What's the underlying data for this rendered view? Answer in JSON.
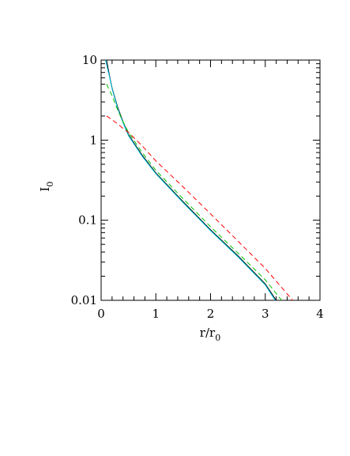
{
  "chart_data": {
    "type": "line",
    "xlabel": "r/r",
    "xlabel_sub": "0",
    "ylabel": "I",
    "ylabel_sub": "0",
    "xlim": [
      0,
      4
    ],
    "xticks": [
      0,
      1,
      2,
      3,
      4
    ],
    "ylim": [
      0.01,
      10
    ],
    "yticks": [
      0.01,
      0.1,
      1,
      10
    ],
    "ylog": true,
    "series": [
      {
        "color": "#000000",
        "dash": false,
        "x": [
          0.1,
          0.15,
          0.2,
          0.3,
          0.4,
          0.5,
          0.75,
          1,
          1.5,
          2,
          2.5,
          3,
          3.2
        ],
        "values": [
          10,
          6.5,
          4.5,
          2.6,
          1.7,
          1.17,
          0.65,
          0.39,
          0.17,
          0.076,
          0.036,
          0.016,
          0.01
        ]
      },
      {
        "color": "#00c0e0",
        "dash": false,
        "x": [
          0.08,
          0.15,
          0.2,
          0.3,
          0.4,
          0.5,
          0.75,
          1,
          1.5,
          2,
          2.5,
          3,
          3.18
        ],
        "values": [
          10,
          6.3,
          4.4,
          2.5,
          1.65,
          1.14,
          0.63,
          0.38,
          0.165,
          0.074,
          0.035,
          0.0155,
          0.01
        ]
      },
      {
        "color": "#00c000",
        "dash": true,
        "x": [
          0.1,
          0.2,
          0.3,
          0.4,
          0.5,
          0.75,
          1,
          1.5,
          2,
          2.5,
          3,
          3.3
        ],
        "values": [
          5,
          3.6,
          2.4,
          1.7,
          1.25,
          0.7,
          0.42,
          0.185,
          0.083,
          0.039,
          0.018,
          0.01
        ]
      },
      {
        "color": "#ff0000",
        "dash": true,
        "x": [
          0.1,
          0.2,
          0.3,
          0.4,
          0.5,
          0.75,
          1,
          1.5,
          2,
          2.5,
          3,
          3.5
        ],
        "values": [
          2,
          1.8,
          1.6,
          1.4,
          1.25,
          0.85,
          0.55,
          0.26,
          0.12,
          0.055,
          0.025,
          0.01
        ]
      }
    ]
  }
}
